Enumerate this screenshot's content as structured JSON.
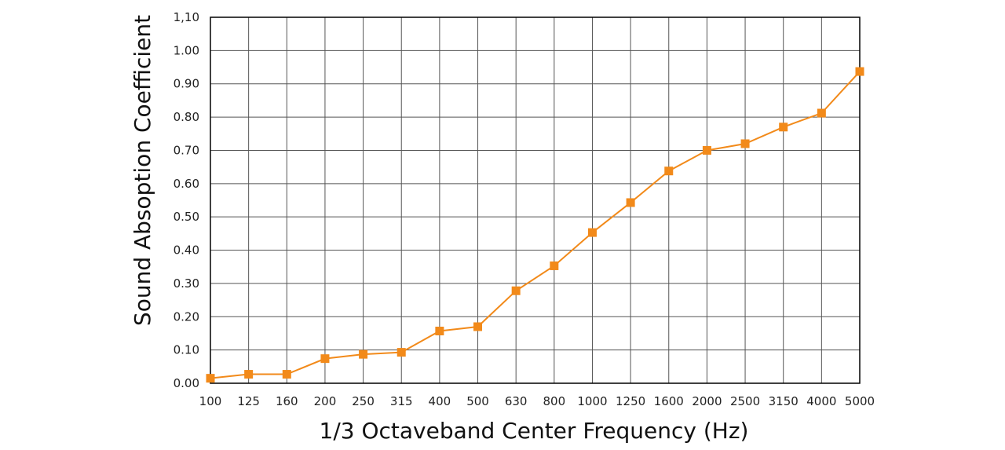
{
  "chart_data": {
    "type": "line",
    "xlabel": "1/3 Octaveband Center Frequency (Hz)",
    "ylabel": "Sound Absoption Coefficient",
    "categories": [
      "100",
      "125",
      "160",
      "200",
      "250",
      "315",
      "400",
      "500",
      "630",
      "800",
      "1000",
      "1250",
      "1600",
      "2000",
      "2500",
      "3150",
      "4000",
      "5000"
    ],
    "series": [
      {
        "values": [
          0.015,
          0.027,
          0.027,
          0.074,
          0.087,
          0.093,
          0.157,
          0.17,
          0.278,
          0.353,
          0.453,
          0.543,
          0.638,
          0.7,
          0.72,
          0.77,
          0.812,
          0.937
        ]
      }
    ],
    "ylim": [
      0,
      1.1
    ],
    "yticks": [
      "0.00",
      "0.10",
      "0.20",
      "0.30",
      "0.40",
      "0.50",
      "0.60",
      "0.70",
      "0.80",
      "0.90",
      "1.00",
      "1,10"
    ],
    "grid": true,
    "colors": {
      "series": "#f28a1a",
      "grid": "#555555",
      "frame": "#000000"
    }
  }
}
